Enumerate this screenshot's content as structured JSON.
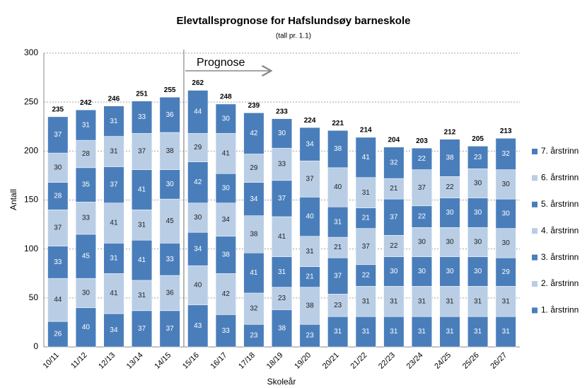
{
  "chart_data": {
    "type": "stacked_bar",
    "title": "Elevtallsprognose for Hafslundsøy barneskole",
    "subtitle": "(tall pr. 1.1)",
    "x_label": "Skoleår",
    "y_label": "Antall",
    "annotation": "Prognose",
    "categories": [
      "10/11",
      "11/12",
      "12/13",
      "13/14",
      "14/15",
      "15/16",
      "16/17",
      "17/18",
      "18/19",
      "19/20",
      "20/21",
      "21/22",
      "22/23",
      "23/24",
      "24/25",
      "25/26",
      "26/27"
    ],
    "series": [
      {
        "name": "1. årstrinn",
        "color": "#4a7ebb",
        "values": [
          26,
          40,
          34,
          37,
          37,
          43,
          33,
          23,
          38,
          23,
          31,
          31,
          31,
          31,
          31,
          31,
          31
        ]
      },
      {
        "name": "2. årstrinn",
        "color": "#b9cde5",
        "values": [
          44,
          30,
          41,
          31,
          36,
          40,
          42,
          32,
          23,
          38,
          23,
          31,
          31,
          31,
          31,
          31,
          31
        ]
      },
      {
        "name": "3. årstrinn",
        "color": "#4a7ebb",
        "values": [
          33,
          45,
          31,
          41,
          33,
          34,
          38,
          41,
          31,
          21,
          37,
          22,
          30,
          30,
          30,
          30,
          29
        ]
      },
      {
        "name": "4. årstrinn",
        "color": "#b9cde5",
        "values": [
          37,
          33,
          41,
          31,
          45,
          30,
          34,
          38,
          41,
          31,
          21,
          37,
          22,
          30,
          30,
          30,
          30
        ]
      },
      {
        "name": "5. årstrinn",
        "color": "#4a7ebb",
        "values": [
          28,
          35,
          37,
          41,
          30,
          42,
          30,
          34,
          37,
          40,
          31,
          21,
          37,
          22,
          30,
          30,
          30
        ]
      },
      {
        "name": "6. årstrinn",
        "color": "#b9cde5",
        "values": [
          30,
          28,
          31,
          37,
          38,
          29,
          41,
          29,
          33,
          37,
          40,
          31,
          21,
          37,
          22,
          30,
          30
        ]
      },
      {
        "name": "7. årstrinn",
        "color": "#4a7ebb",
        "values": [
          37,
          31,
          31,
          33,
          36,
          44,
          30,
          42,
          30,
          34,
          38,
          41,
          32,
          22,
          38,
          23,
          32
        ]
      }
    ],
    "totals": [
      235,
      242,
      246,
      251,
      255,
      262,
      248,
      239,
      233,
      224,
      221,
      214,
      204,
      203,
      212,
      205,
      213
    ],
    "ylim": [
      0,
      300
    ],
    "yticks": [
      0,
      50,
      100,
      150,
      200,
      250,
      300
    ],
    "grid": true,
    "legend": "right",
    "forecast_start_index": 5
  }
}
